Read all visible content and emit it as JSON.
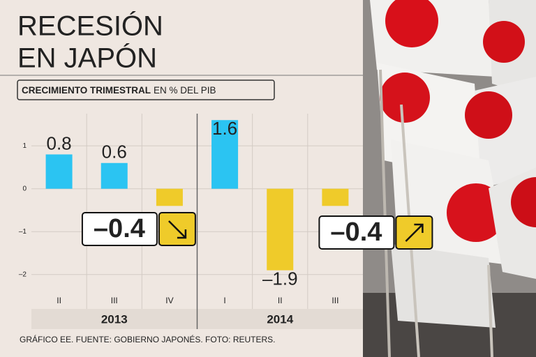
{
  "chart_data": {
    "type": "bar",
    "title_lines": [
      "RECESIÓN",
      "EN JAPÓN"
    ],
    "subtitle": "CRECIMIENTO TRIMESTRAL",
    "unit_label": "EN % DEL PIB",
    "categories": [
      "II",
      "III",
      "IV",
      "I",
      "II",
      "III"
    ],
    "category_groups": [
      "2013",
      "2014"
    ],
    "values": [
      0.8,
      0.6,
      -0.4,
      1.6,
      -1.9,
      -0.4
    ],
    "value_labels": [
      "0.8",
      "0.6",
      "–0.4",
      "1.6",
      "–1.9",
      "–0.4"
    ],
    "positive_color": "#2bc4f2",
    "negative_color": "#efcb2a",
    "ylim": [
      -2.8,
      1.75
    ],
    "yticks": [
      {
        "value": 1,
        "label": "1"
      },
      0,
      {
        "value": -1,
        "label": "–1"
      },
      {
        "value": -2,
        "label": "–2"
      }
    ],
    "grid": true,
    "footer": "GRÁFICO EE. FUENTE: GOBIERNO JAPONÉS. FOTO: REUTERS."
  }
}
